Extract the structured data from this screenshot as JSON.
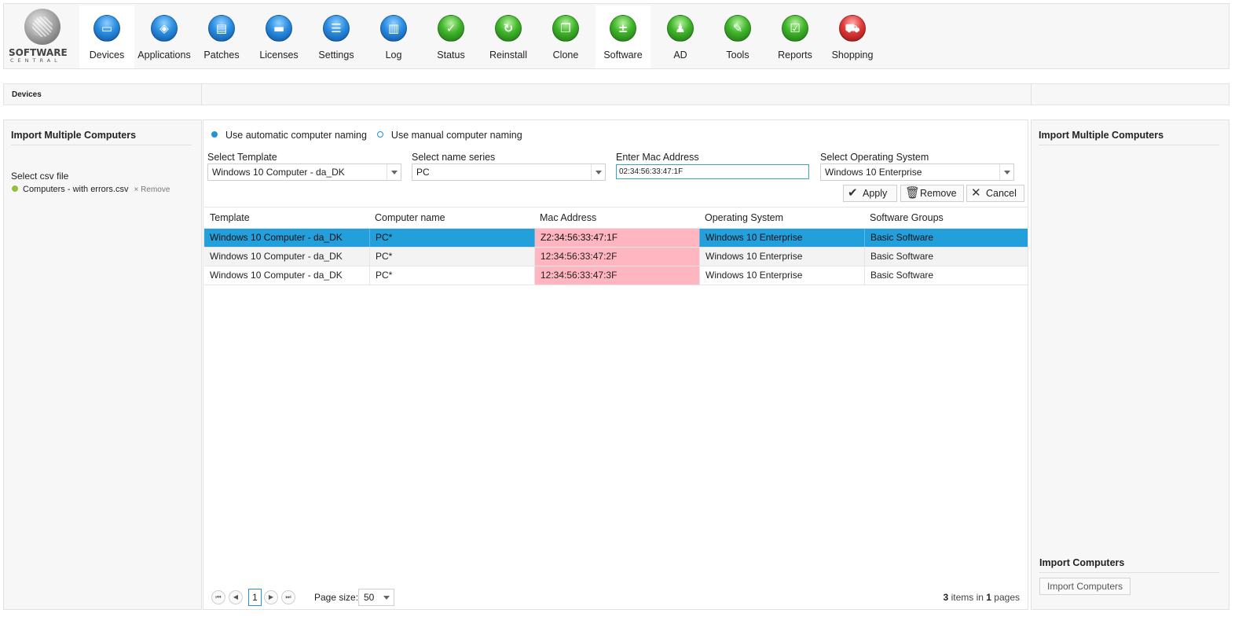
{
  "logo": {
    "line1": "SOFTWARE",
    "line2": "CENTRAL"
  },
  "nav": [
    {
      "label": "Devices",
      "icon": "monitor-icon",
      "glyph": "▭",
      "color": "blue",
      "active": true
    },
    {
      "label": "Applications",
      "icon": "box-icon",
      "glyph": "◈",
      "color": "blue"
    },
    {
      "label": "Patches",
      "icon": "book-icon",
      "glyph": "▤",
      "color": "blue"
    },
    {
      "label": "Licenses",
      "icon": "folder-icon",
      "glyph": "▬",
      "color": "blue"
    },
    {
      "label": "Settings",
      "icon": "settings-icon",
      "glyph": "☰",
      "color": "blue"
    },
    {
      "label": "Log",
      "icon": "log-icon",
      "glyph": "▥",
      "color": "blue"
    },
    {
      "label": "Status",
      "icon": "check-icon",
      "glyph": "✓",
      "color": "green"
    },
    {
      "label": "Reinstall",
      "icon": "refresh-icon",
      "glyph": "↻",
      "color": "green"
    },
    {
      "label": "Clone",
      "icon": "clone-icon",
      "glyph": "❐",
      "color": "green"
    },
    {
      "label": "Software",
      "icon": "plus-minus-icon",
      "glyph": "±",
      "color": "green",
      "active": true
    },
    {
      "label": "AD",
      "icon": "users-icon",
      "glyph": "♟",
      "color": "green"
    },
    {
      "label": "Tools",
      "icon": "wrench-icon",
      "glyph": "✎",
      "color": "green"
    },
    {
      "label": "Reports",
      "icon": "report-icon",
      "glyph": "☑",
      "color": "green"
    },
    {
      "label": "Shopping",
      "icon": "cart-icon",
      "glyph": "⛟",
      "color": "red"
    }
  ],
  "breadcrumb": "Devices",
  "left": {
    "title": "Import Multiple Computers",
    "csv_label": "Select csv file",
    "file_name": "Computers - with errors.csv",
    "remove_x": "×",
    "remove_label": "Remove"
  },
  "form": {
    "radio_auto": "Use automatic computer naming",
    "radio_manual": "Use manual computer naming",
    "template_label": "Select Template",
    "template_value": "Windows 10 Computer - da_DK",
    "series_label": "Select name series",
    "series_value": "PC",
    "mac_label": "Enter Mac Address",
    "mac_value": "02:34:56:33:47:1F",
    "os_label": "Select Operating System",
    "os_value": "Windows 10 Enterprise",
    "apply": "Apply",
    "remove": "Remove",
    "cancel": "Cancel"
  },
  "grid": {
    "headers": [
      "Template",
      "Computer name",
      "Mac Address",
      "Operating System",
      "Software Groups"
    ],
    "rows": [
      [
        "Windows 10 Computer - da_DK",
        "PC*",
        "Z2:34:56:33:47:1F",
        "Windows 10 Enterprise",
        "Basic Software"
      ],
      [
        "Windows 10 Computer - da_DK",
        "PC*",
        "12:34:56:33:47:2F",
        "Windows 10 Enterprise",
        "Basic Software"
      ],
      [
        "Windows 10 Computer - da_DK",
        "PC*",
        "12:34:56:33:47:3F",
        "Windows 10 Enterprise",
        "Basic Software"
      ]
    ]
  },
  "pager": {
    "first": "⏮",
    "prev": "◀",
    "page": "1",
    "next": "▶",
    "last": "⏭",
    "size_label": "Page size:",
    "size": "50",
    "count": "3",
    "items_in": "items in",
    "pages": "1",
    "pages_label": "pages"
  },
  "right": {
    "title": "Import Multiple Computers",
    "section_title": "Import Computers",
    "button": "Import Computers"
  }
}
